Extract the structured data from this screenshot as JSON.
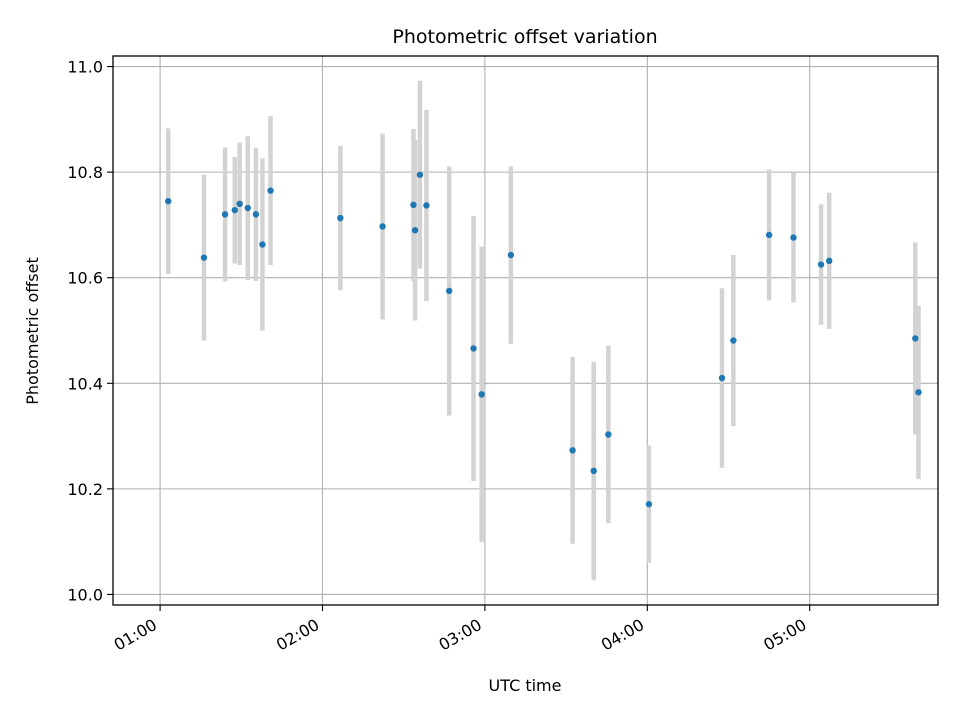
{
  "chart_data": {
    "type": "scatter",
    "title": "Photometric offset variation",
    "xlabel": "UTC time",
    "ylabel": "Photometric offset",
    "xlim_hours": [
      0.71,
      5.79
    ],
    "ylim": [
      9.98,
      11.02
    ],
    "grid": true,
    "x_ticks": [
      {
        "hour": 1,
        "label": "01:00"
      },
      {
        "hour": 2,
        "label": "02:00"
      },
      {
        "hour": 3,
        "label": "03:00"
      },
      {
        "hour": 4,
        "label": "04:00"
      },
      {
        "hour": 5,
        "label": "05:00"
      }
    ],
    "y_ticks": [
      {
        "value": 10.0,
        "label": "10.0"
      },
      {
        "value": 10.2,
        "label": "10.2"
      },
      {
        "value": 10.4,
        "label": "10.4"
      },
      {
        "value": 10.6,
        "label": "10.6"
      },
      {
        "value": 10.8,
        "label": "10.8"
      },
      {
        "value": 11.0,
        "label": "11.0"
      }
    ],
    "marker_color": "#1f77b4",
    "errorbar_color": "#d3d3d3",
    "points": [
      {
        "t": 1.05,
        "y": 10.745,
        "err": 0.138
      },
      {
        "t": 1.27,
        "y": 10.638,
        "err": 0.157
      },
      {
        "t": 1.4,
        "y": 10.72,
        "err": 0.127
      },
      {
        "t": 1.46,
        "y": 10.728,
        "err": 0.101
      },
      {
        "t": 1.49,
        "y": 10.74,
        "err": 0.116
      },
      {
        "t": 1.54,
        "y": 10.732,
        "err": 0.136
      },
      {
        "t": 1.59,
        "y": 10.72,
        "err": 0.126
      },
      {
        "t": 1.63,
        "y": 10.663,
        "err": 0.163
      },
      {
        "t": 1.68,
        "y": 10.765,
        "err": 0.141
      },
      {
        "t": 2.11,
        "y": 10.713,
        "err": 0.137
      },
      {
        "t": 2.37,
        "y": 10.697,
        "err": 0.176
      },
      {
        "t": 2.56,
        "y": 10.738,
        "err": 0.144
      },
      {
        "t": 2.57,
        "y": 10.69,
        "err": 0.171
      },
      {
        "t": 2.6,
        "y": 10.795,
        "err": 0.178
      },
      {
        "t": 2.64,
        "y": 10.737,
        "err": 0.181
      },
      {
        "t": 2.78,
        "y": 10.575,
        "err": 0.236
      },
      {
        "t": 2.93,
        "y": 10.466,
        "err": 0.251
      },
      {
        "t": 2.98,
        "y": 10.379,
        "err": 0.28
      },
      {
        "t": 3.16,
        "y": 10.643,
        "err": 0.168
      },
      {
        "t": 3.54,
        "y": 10.273,
        "err": 0.177
      },
      {
        "t": 3.67,
        "y": 10.234,
        "err": 0.207
      },
      {
        "t": 3.76,
        "y": 10.303,
        "err": 0.168
      },
      {
        "t": 4.01,
        "y": 10.171,
        "err": 0.111
      },
      {
        "t": 4.46,
        "y": 10.41,
        "err": 0.17
      },
      {
        "t": 4.53,
        "y": 10.481,
        "err": 0.162
      },
      {
        "t": 4.75,
        "y": 10.681,
        "err": 0.124
      },
      {
        "t": 4.9,
        "y": 10.676,
        "err": 0.123
      },
      {
        "t": 5.07,
        "y": 10.625,
        "err": 0.114
      },
      {
        "t": 5.12,
        "y": 10.632,
        "err": 0.129
      },
      {
        "t": 5.65,
        "y": 10.485,
        "err": 0.182
      },
      {
        "t": 5.67,
        "y": 10.383,
        "err": 0.164
      }
    ]
  }
}
